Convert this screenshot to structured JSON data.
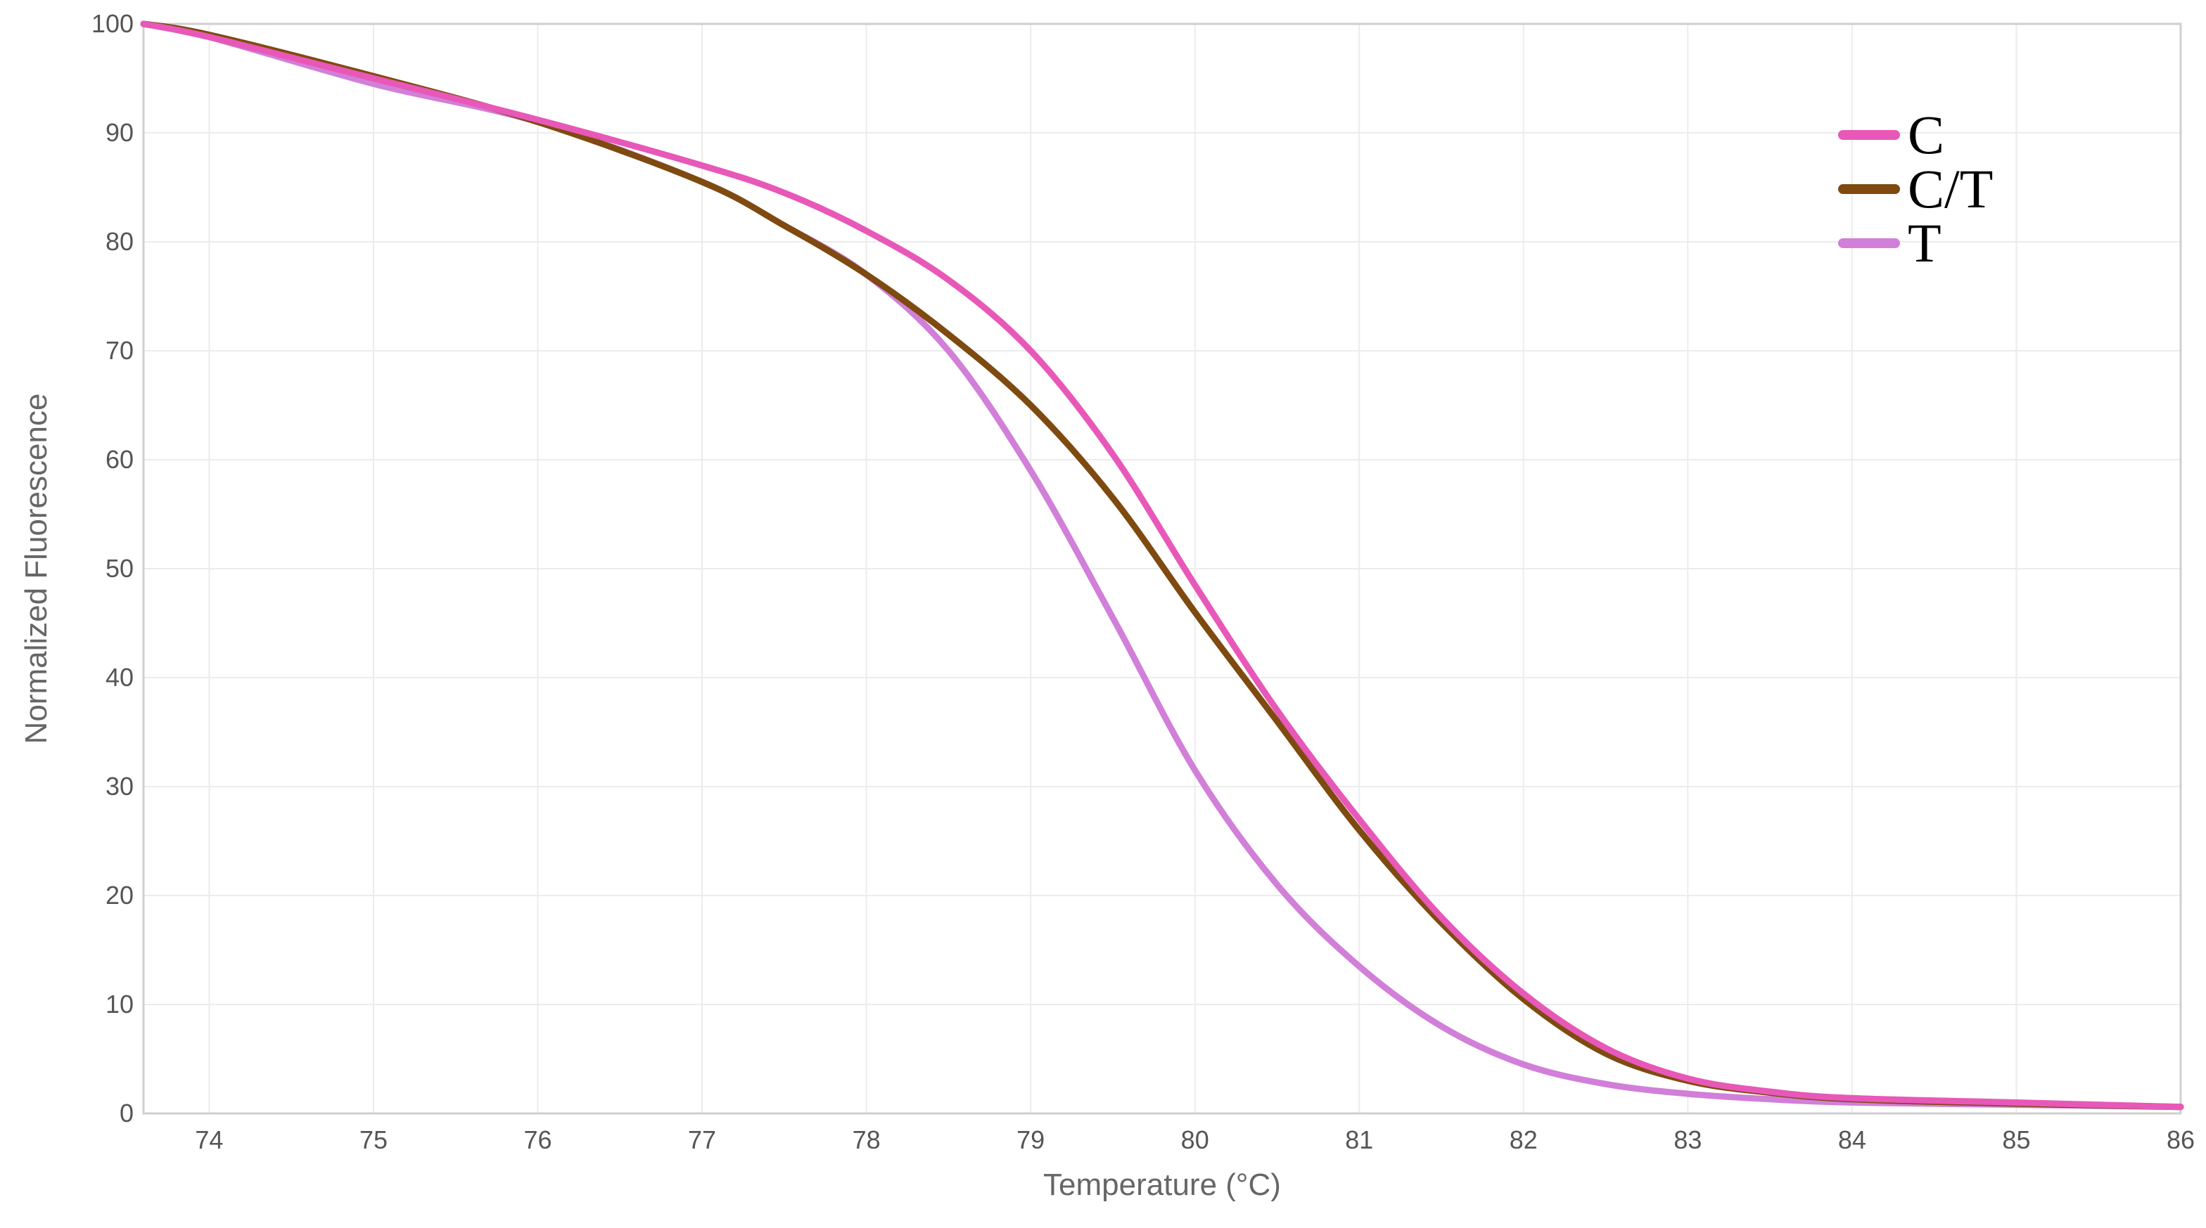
{
  "chart_data": {
    "type": "line",
    "title": "",
    "xlabel": "Temperature (°C)",
    "ylabel": "Normalized Fluorescence",
    "xlim": [
      73.6,
      86
    ],
    "ylim": [
      0,
      100
    ],
    "x_ticks": [
      "74",
      "75",
      "76",
      "77",
      "78",
      "79",
      "80",
      "81",
      "82",
      "83",
      "84",
      "85",
      "86"
    ],
    "y_ticks": [
      "0",
      "10",
      "20",
      "30",
      "40",
      "50",
      "60",
      "70",
      "80",
      "90",
      "100"
    ],
    "grid": true,
    "legend_position": "top-right",
    "series": [
      {
        "name": "C",
        "color": "#e858b8",
        "x": [
          73.6,
          74,
          75,
          76,
          77,
          77.5,
          78,
          78.5,
          79,
          79.5,
          80,
          80.5,
          81,
          81.5,
          82,
          82.5,
          83,
          83.5,
          84,
          85,
          86
        ],
        "y": [
          100,
          98.8,
          95,
          91.2,
          87,
          84.5,
          81,
          76.5,
          70,
          60.5,
          48.5,
          37,
          27,
          18,
          11,
          6,
          3.2,
          2,
          1.4,
          1,
          0.6
        ]
      },
      {
        "name": "C/T",
        "color": "#7f4a10",
        "x": [
          73.6,
          74,
          75,
          76,
          77,
          77.5,
          78,
          78.5,
          79,
          79.5,
          80,
          80.5,
          81,
          81.5,
          82,
          82.5,
          83,
          83.5,
          84,
          85,
          86
        ],
        "y": [
          100,
          99,
          95.2,
          91,
          85.5,
          81.5,
          77,
          71.5,
          65,
          56.5,
          46,
          36,
          26,
          17.5,
          10.5,
          5.5,
          3,
          1.9,
          1.3,
          0.9,
          0.6
        ]
      },
      {
        "name": "T",
        "color": "#d17fd8",
        "x": [
          73.6,
          74,
          75,
          76,
          77,
          77.5,
          78,
          78.5,
          79,
          79.5,
          80,
          80.5,
          81,
          81.5,
          82,
          82.5,
          83,
          83.5,
          84,
          85,
          86
        ],
        "y": [
          100,
          98.8,
          94.5,
          91,
          85.5,
          81.5,
          77,
          70,
          59,
          45.5,
          31.5,
          21,
          13.5,
          8,
          4.5,
          2.7,
          1.8,
          1.3,
          1,
          0.8,
          0.6
        ]
      }
    ]
  }
}
